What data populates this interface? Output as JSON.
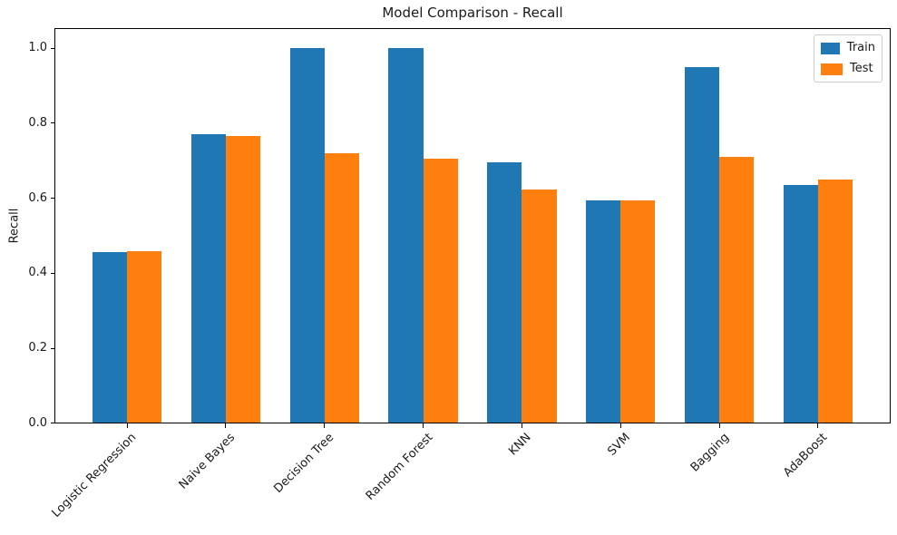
{
  "chart_data": {
    "type": "bar",
    "title": "Model Comparison - Recall",
    "xlabel": "",
    "ylabel": "Recall",
    "categories": [
      "Logistic Regression",
      "Naive Bayes",
      "Decision Tree",
      "Random Forest",
      "KNN",
      "SVM",
      "Bagging",
      "AdaBoost"
    ],
    "series": [
      {
        "name": "Train",
        "color": "#1f77b4",
        "values": [
          0.456,
          0.771,
          1.0,
          1.0,
          0.696,
          0.594,
          0.951,
          0.635
        ]
      },
      {
        "name": "Test",
        "color": "#ff7f0e",
        "values": [
          0.459,
          0.766,
          0.72,
          0.705,
          0.623,
          0.594,
          0.71,
          0.651
        ]
      }
    ],
    "bar_width": 0.35,
    "ylim": [
      0,
      1.05
    ],
    "yticks": [
      "0.0",
      "0.2",
      "0.4",
      "0.6",
      "0.8",
      "1.0"
    ],
    "xtick_rotation": 45,
    "grid": false,
    "legend_position": "upper right"
  }
}
